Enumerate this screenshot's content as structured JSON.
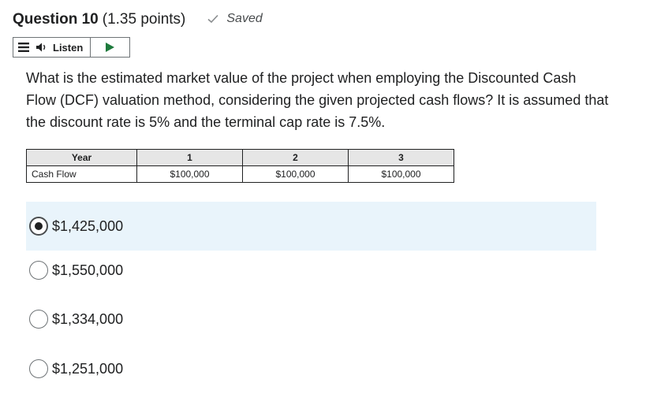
{
  "question": {
    "title": "Question 10",
    "points": "(1.35 points)",
    "status": "Saved",
    "text": "What is the estimated market value of the project when employing the Discounted Cash Flow (DCF) valuation method, considering the given projected cash flows? It is assumed that the discount rate is 5% and the terminal cap rate is 7.5%."
  },
  "listen": {
    "label": "Listen",
    "icons": [
      "menu-icon",
      "speaker-icon",
      "play-icon"
    ]
  },
  "table": {
    "headers": [
      "Year",
      "1",
      "2",
      "3"
    ],
    "rows": [
      [
        "Cash Flow",
        "$100,000",
        "$100,000",
        "$100,000"
      ]
    ]
  },
  "choices": [
    {
      "label": "$1,425,000",
      "selected": true
    },
    {
      "label": "$1,550,000",
      "selected": false
    },
    {
      "label": "$1,334,000",
      "selected": false
    },
    {
      "label": "$1,251,000",
      "selected": false
    }
  ],
  "colors": {
    "selected_background": "#e9f4fb",
    "text": "#202122",
    "table_header_background": "#e6e6e6"
  }
}
